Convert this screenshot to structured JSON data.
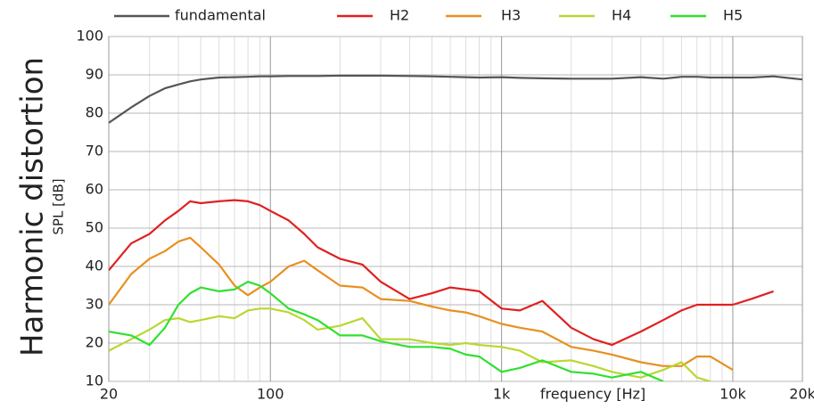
{
  "chart_data": {
    "type": "line",
    "title": "Harmonic distortion",
    "ylabel": "SPL [dB]",
    "xlabel": "frequency [Hz]",
    "log_x": true,
    "grid": true,
    "xlim": [
      20,
      20000
    ],
    "ylim": [
      10,
      100
    ],
    "xticks": [
      20,
      100,
      {
        "value": 1000,
        "label": "1k"
      },
      {
        "value": 10000,
        "label": "10k"
      },
      {
        "value": 20000,
        "label": "20k"
      }
    ],
    "x_minor_ticks": [
      30,
      40,
      50,
      60,
      70,
      80,
      90,
      200,
      300,
      400,
      500,
      600,
      700,
      800,
      900,
      2000,
      3000,
      4000,
      5000,
      6000,
      7000,
      8000,
      9000
    ],
    "yticks": [
      10,
      20,
      30,
      40,
      50,
      60,
      70,
      80,
      90,
      100
    ],
    "x": [
      20,
      25,
      30,
      35,
      40,
      45,
      50,
      60,
      70,
      80,
      90,
      100,
      120,
      140,
      160,
      200,
      250,
      300,
      400,
      500,
      600,
      700,
      800,
      1000,
      1200,
      1500,
      2000,
      2500,
      3000,
      4000,
      5000,
      6000,
      7000,
      8000,
      10000,
      12000,
      15000,
      20000
    ],
    "series": [
      {
        "name": "fundamental",
        "color": "#555555",
        "values": [
          77.5,
          81.5,
          84.5,
          86.5,
          87.5,
          88.3,
          88.8,
          89.3,
          89.4,
          89.5,
          89.6,
          89.6,
          89.7,
          89.7,
          89.7,
          89.8,
          89.8,
          89.8,
          89.7,
          89.6,
          89.5,
          89.4,
          89.3,
          89.4,
          89.2,
          89.1,
          89.0,
          89.0,
          89.0,
          89.4,
          89.0,
          89.5,
          89.5,
          89.3,
          89.3,
          89.3,
          89.6,
          88.8
        ]
      },
      {
        "name": "H2",
        "color": "#e02020",
        "values": [
          39,
          46,
          48.5,
          52,
          54.5,
          57,
          56.5,
          57,
          57.3,
          57,
          56,
          54.5,
          52,
          48.5,
          45,
          42,
          40.5,
          36,
          31.5,
          33,
          34.5,
          34,
          33.5,
          29,
          28.5,
          31,
          24,
          21,
          19.5,
          23,
          26,
          28.5,
          30,
          30,
          30,
          31.5,
          33.5,
          null
        ]
      },
      {
        "name": "H3",
        "color": "#e8901f",
        "values": [
          30,
          38,
          42,
          44,
          46.5,
          47.5,
          45,
          40.5,
          35,
          32.5,
          34.5,
          36,
          40,
          41.5,
          39,
          35,
          34.5,
          31.5,
          31,
          29.5,
          28.5,
          28,
          27,
          25,
          24,
          23,
          19,
          18,
          17,
          15,
          14,
          14,
          16.5,
          16.5,
          13,
          null,
          null,
          null
        ]
      },
      {
        "name": "H4",
        "color": "#b8d830",
        "values": [
          18,
          21,
          23.5,
          26,
          26.5,
          25.5,
          26,
          27,
          26.5,
          28.5,
          29,
          29,
          28,
          26,
          23.5,
          24.5,
          26.5,
          21,
          21,
          20,
          19.5,
          20,
          19.5,
          19,
          18,
          15,
          15.5,
          14,
          12.5,
          11,
          13,
          15,
          11,
          10,
          null,
          null,
          null,
          null
        ]
      },
      {
        "name": "H5",
        "color": "#30e030",
        "values": [
          23,
          22,
          19.5,
          24,
          30,
          33,
          34.5,
          33.5,
          34,
          36,
          35,
          33,
          29,
          27.5,
          26,
          22,
          22,
          20.5,
          19,
          19,
          18.5,
          17,
          16.5,
          12.5,
          13.5,
          15.5,
          12.5,
          12,
          11,
          12.5,
          10,
          null,
          null,
          null,
          null,
          null,
          null,
          null
        ]
      }
    ]
  }
}
